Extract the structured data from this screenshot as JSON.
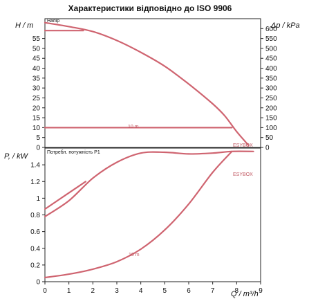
{
  "chart_data": [
    {
      "type": "line",
      "title": "Характеристики відповідно до ISO 9906",
      "panel_label": "Напір",
      "ylabel_left": "H / m",
      "ylabel_right": "Δp / kPa",
      "xlim": [
        0,
        9
      ],
      "ylim": [
        0,
        65
      ],
      "ylim_right": [
        0,
        650
      ],
      "yticks_left": [
        0,
        5,
        10,
        15,
        20,
        25,
        30,
        35,
        40,
        45,
        50,
        55
      ],
      "yticks_right": [
        0,
        50,
        100,
        150,
        200,
        250,
        300,
        350,
        400,
        450,
        500,
        550,
        600
      ],
      "grid": false,
      "series": [
        {
          "name": "",
          "x": [
            0,
            1,
            2,
            3,
            4,
            5,
            6,
            7,
            7.5,
            8,
            8.5
          ],
          "y": [
            63,
            61,
            58.5,
            54,
            48,
            41,
            32,
            22,
            16,
            8,
            1
          ]
        },
        {
          "name": "",
          "x": [
            0,
            1.6
          ],
          "y": [
            59,
            59
          ]
        },
        {
          "name": "",
          "x": [
            0,
            7.8
          ],
          "y": [
            10,
            10
          ]
        }
      ],
      "annotations": [
        "10 m",
        "ESYBOX"
      ]
    },
    {
      "type": "line",
      "panel_label": "Потребл. потужність P1",
      "ylabel": "P, / kW",
      "xlabel": "Q / m³/h",
      "xlim": [
        0,
        9
      ],
      "ylim": [
        0,
        1.6
      ],
      "xticks": [
        0,
        1,
        2,
        3,
        4,
        5,
        6,
        7,
        8,
        9
      ],
      "yticks": [
        0,
        0.2,
        0.4,
        0.6,
        0.8,
        1,
        1.2,
        1.4
      ],
      "grid": false,
      "series": [
        {
          "name": "",
          "x": [
            0,
            1,
            2,
            3,
            4,
            5,
            6,
            7,
            7.8,
            8.7
          ],
          "y": [
            0.78,
            0.97,
            1.24,
            1.43,
            1.54,
            1.55,
            1.53,
            1.54,
            1.56,
            1.56
          ]
        },
        {
          "name": "",
          "x": [
            0,
            1.7
          ],
          "y": [
            0.87,
            1.2
          ]
        },
        {
          "name": "",
          "x": [
            0,
            1,
            2,
            3,
            4,
            5,
            6,
            7,
            7.8
          ],
          "y": [
            0.05,
            0.09,
            0.15,
            0.24,
            0.39,
            0.62,
            0.93,
            1.31,
            1.56
          ]
        }
      ],
      "annotations": [
        "10 m",
        "ESYBOX"
      ]
    }
  ]
}
